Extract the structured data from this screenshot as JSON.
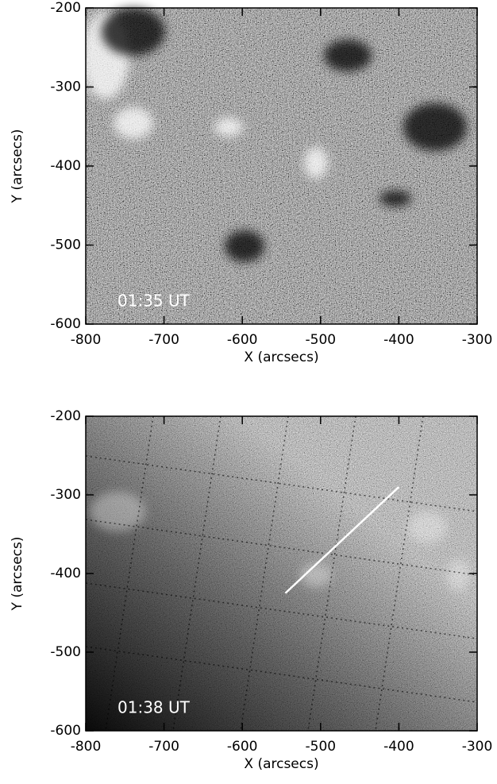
{
  "chart_data": [
    {
      "type": "image",
      "xlabel": "X (arcsecs)",
      "ylabel": "Y (arcsecs)",
      "annotation": "01:35 UT",
      "xlim": [
        -800,
        -300
      ],
      "ylim": [
        -600,
        -200
      ],
      "xticks": [
        -800,
        -700,
        -600,
        -500,
        -400,
        -300
      ],
      "yticks": [
        -600,
        -500,
        -400,
        -300,
        -200
      ]
    },
    {
      "type": "image",
      "xlabel": "X (arcsecs)",
      "ylabel": "Y (arcsecs)",
      "annotation": "01:38 UT",
      "xlim": [
        -800,
        -300
      ],
      "ylim": [
        -600,
        -200
      ],
      "xticks": [
        -800,
        -700,
        -600,
        -500,
        -400,
        -300
      ],
      "yticks": [
        -600,
        -500,
        -400,
        -300,
        -200
      ],
      "series": [
        {
          "color": "#ffffff",
          "x": [
            -545,
            -400
          ],
          "values": [
            -425,
            -290
          ]
        }
      ]
    }
  ]
}
